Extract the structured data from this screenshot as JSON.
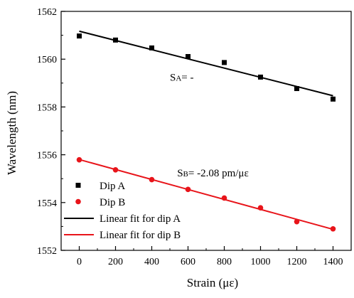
{
  "chart_data": {
    "type": "scatter",
    "title": "",
    "xlabel": "Strain (με)",
    "ylabel": "Wavelength (nm)",
    "xlim": [
      -100,
      1500
    ],
    "ylim": [
      1552,
      1562
    ],
    "x_ticks": [
      0,
      200,
      400,
      600,
      800,
      1000,
      1200,
      1400
    ],
    "y_ticks": [
      1552,
      1554,
      1556,
      1558,
      1560,
      1562
    ],
    "grid": false,
    "legend_position": "bottom-left",
    "series": [
      {
        "name": "Dip A",
        "marker": "square",
        "color": "#000000",
        "x": [
          0,
          200,
          400,
          600,
          800,
          1000,
          1200,
          1400
        ],
        "y": [
          1560.97,
          1560.8,
          1560.47,
          1560.11,
          1559.86,
          1559.25,
          1558.77,
          1558.33
        ]
      },
      {
        "name": "Dip B",
        "marker": "circle",
        "color": "#e8141a",
        "x": [
          0,
          200,
          400,
          600,
          800,
          1000,
          1200,
          1400
        ],
        "y": [
          1555.79,
          1555.37,
          1554.96,
          1554.55,
          1554.19,
          1553.78,
          1553.2,
          1552.9
        ]
      }
    ],
    "fits": [
      {
        "name": "Linear fit for dip A",
        "color": "#000000",
        "x": [
          0,
          1400
        ],
        "y": [
          1561.17,
          1558.47
        ]
      },
      {
        "name": "Linear fit for dip B",
        "color": "#e8141a",
        "x": [
          0,
          1400
        ],
        "y": [
          1555.8,
          1552.88
        ]
      }
    ],
    "annotations": [
      {
        "id": "sa",
        "main": "S",
        "sub": "A",
        "rest": "= -",
        "x": 500,
        "y": 1559.1
      },
      {
        "id": "sb",
        "main": "S",
        "sub": "B",
        "rest": "= -2.08 pm/με",
        "x": 540,
        "y": 1555.1
      }
    ]
  }
}
